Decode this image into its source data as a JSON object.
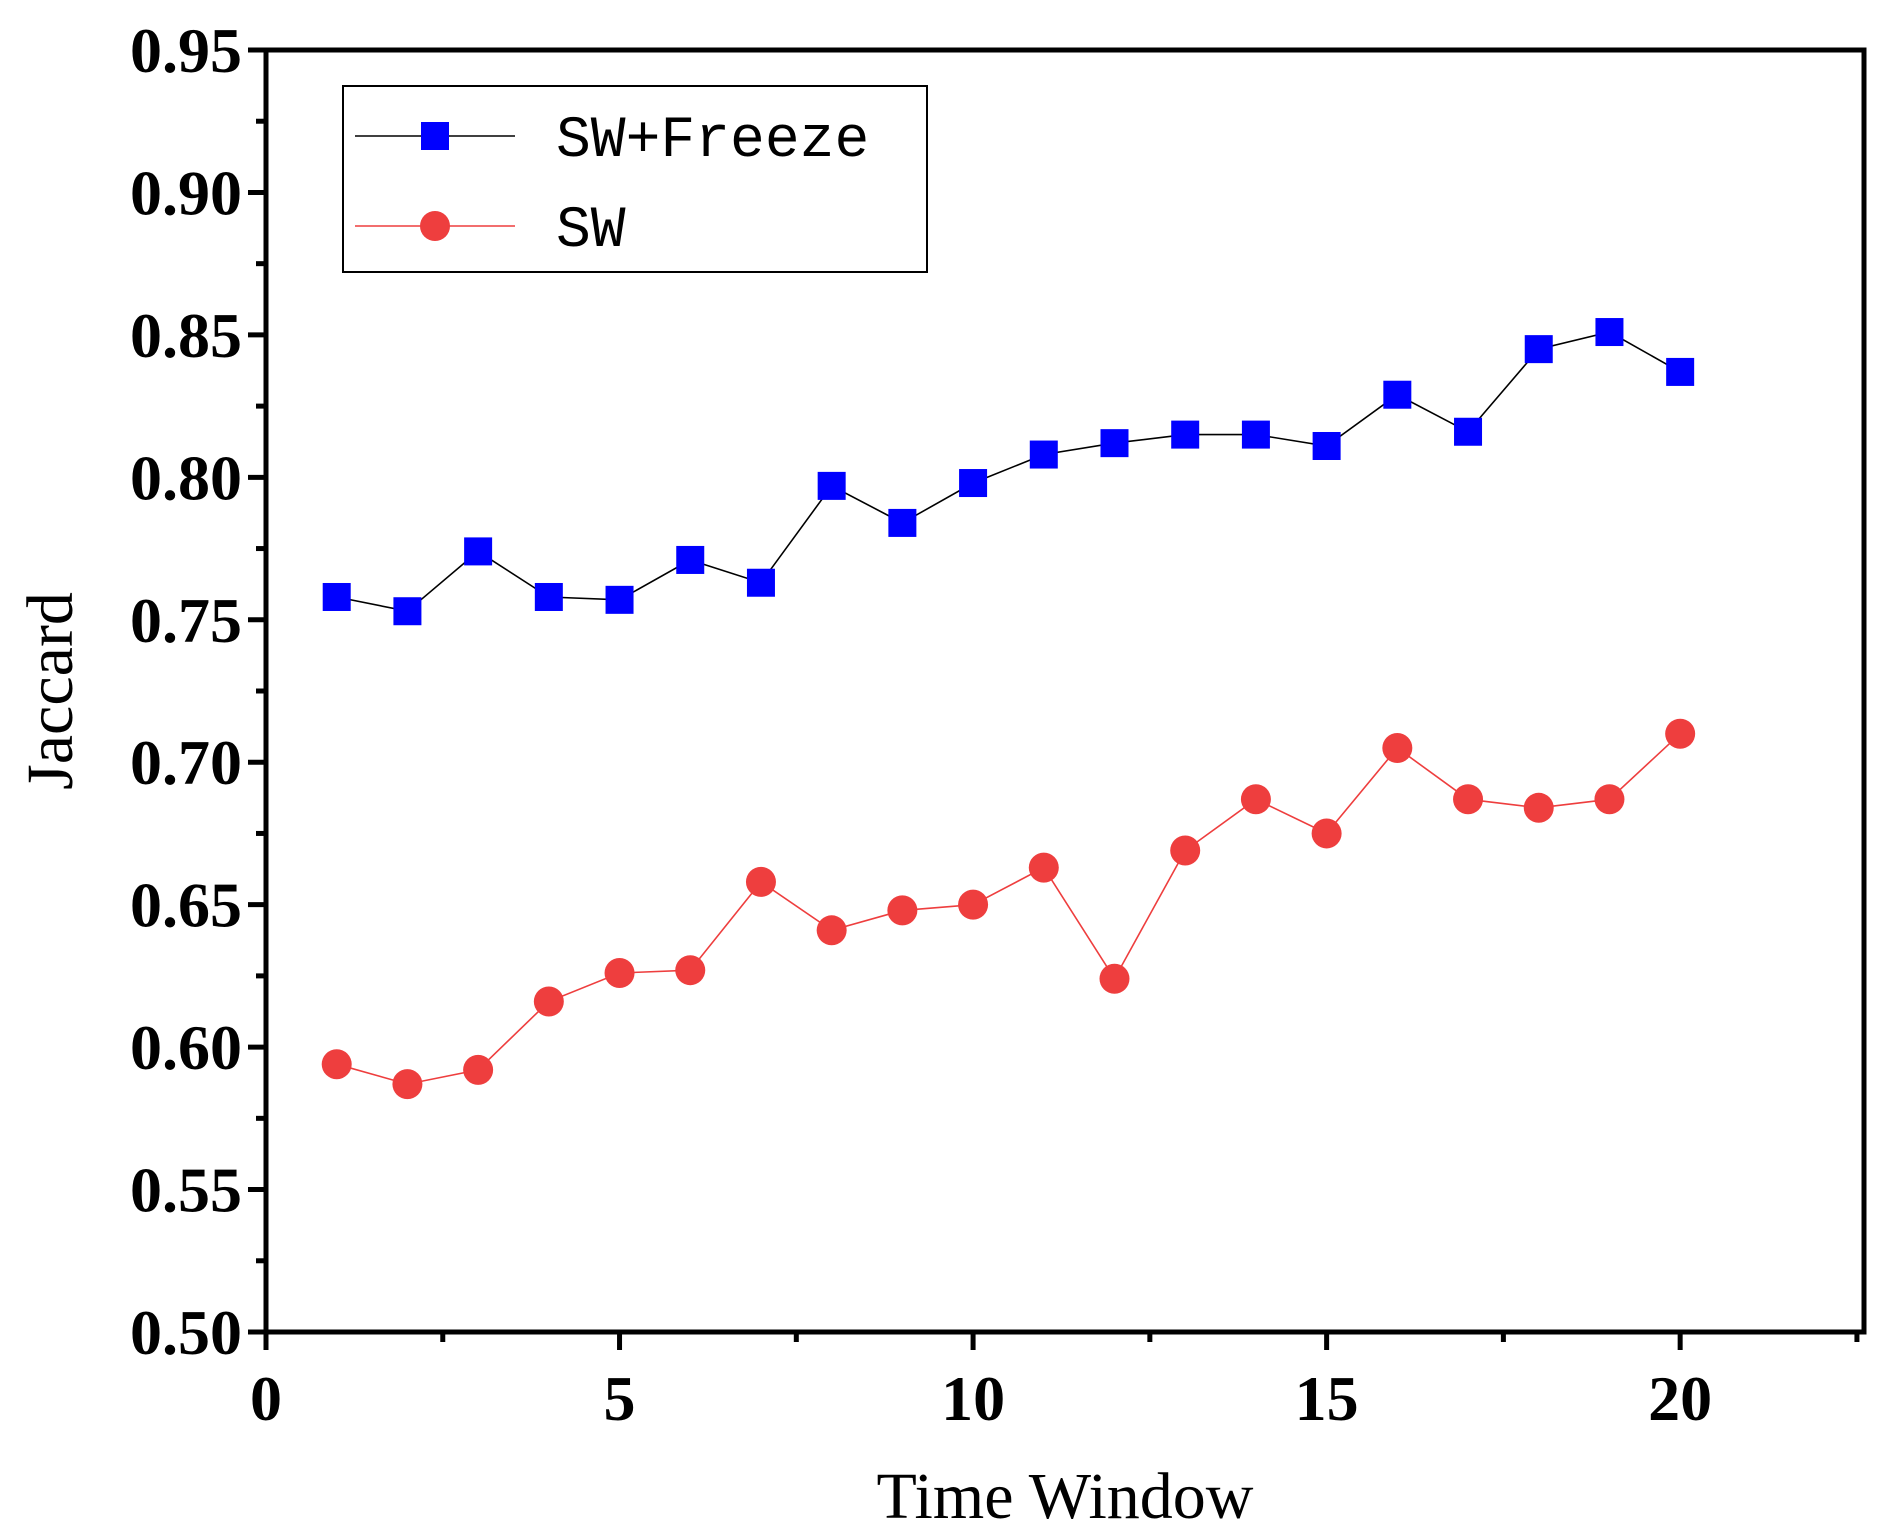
{
  "chart_data": {
    "type": "line",
    "title": "",
    "xlabel": "Time Window",
    "ylabel": "Jaccard",
    "xlim": [
      0,
      22.6
    ],
    "ylim": [
      0.5,
      0.95
    ],
    "x_ticks": [
      0,
      5,
      10,
      15,
      20
    ],
    "x_tick_labels": [
      "0",
      "5",
      "10",
      "15",
      "20"
    ],
    "y_ticks": [
      0.5,
      0.55,
      0.6,
      0.65,
      0.7,
      0.75,
      0.8,
      0.85,
      0.9,
      0.95
    ],
    "y_tick_labels": [
      "0.50",
      "0.55",
      "0.60",
      "0.65",
      "0.70",
      "0.75",
      "0.80",
      "0.85",
      "0.90",
      "0.95"
    ],
    "grid": false,
    "legend_position": "top-left",
    "x": [
      1,
      2,
      3,
      4,
      5,
      6,
      7,
      8,
      9,
      10,
      11,
      12,
      13,
      14,
      15,
      16,
      17,
      18,
      19,
      20
    ],
    "series": [
      {
        "name": "SW+Freeze",
        "marker": "square",
        "color": "#0000ff",
        "line_color": "#000000",
        "values": [
          0.758,
          0.753,
          0.774,
          0.758,
          0.757,
          0.771,
          0.763,
          0.797,
          0.784,
          0.798,
          0.808,
          0.812,
          0.815,
          0.815,
          0.811,
          0.829,
          0.816,
          0.845,
          0.851,
          0.837
        ]
      },
      {
        "name": "SW",
        "marker": "circle",
        "color": "#ee3e3e",
        "line_color": "#ee3e3e",
        "values": [
          0.594,
          0.587,
          0.592,
          0.616,
          0.626,
          0.627,
          0.658,
          0.641,
          0.648,
          0.65,
          0.663,
          0.624,
          0.669,
          0.687,
          0.675,
          0.705,
          0.687,
          0.684,
          0.687,
          0.71
        ]
      }
    ]
  }
}
